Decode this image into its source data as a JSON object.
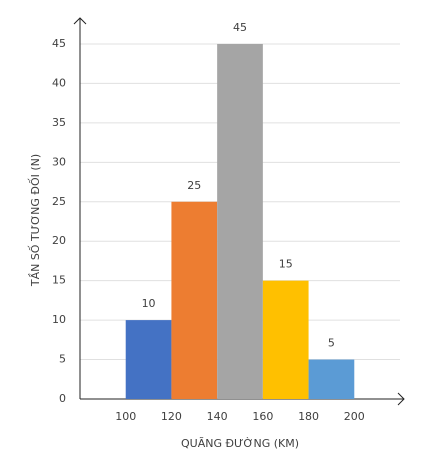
{
  "chart_data": {
    "type": "histogram",
    "bins": [
      100,
      120,
      140,
      160,
      180,
      200
    ],
    "values": [
      10,
      25,
      45,
      15,
      5
    ],
    "colors": [
      "#4472c4",
      "#ed7d31",
      "#a5a5a5",
      "#ffc000",
      "#5b9bd5"
    ],
    "xlabel": "QUÃNG ĐƯỜNG (KM)",
    "ylabel": "TẦN SỐ TƯƠNG ĐỐI (N)",
    "xlim": [
      80,
      220
    ],
    "xticks": [
      100,
      120,
      140,
      160,
      180,
      200
    ],
    "ylim": [
      0,
      48
    ],
    "yticks": [
      0,
      5,
      10,
      15,
      20,
      25,
      30,
      35,
      40,
      45
    ],
    "grid": true
  }
}
